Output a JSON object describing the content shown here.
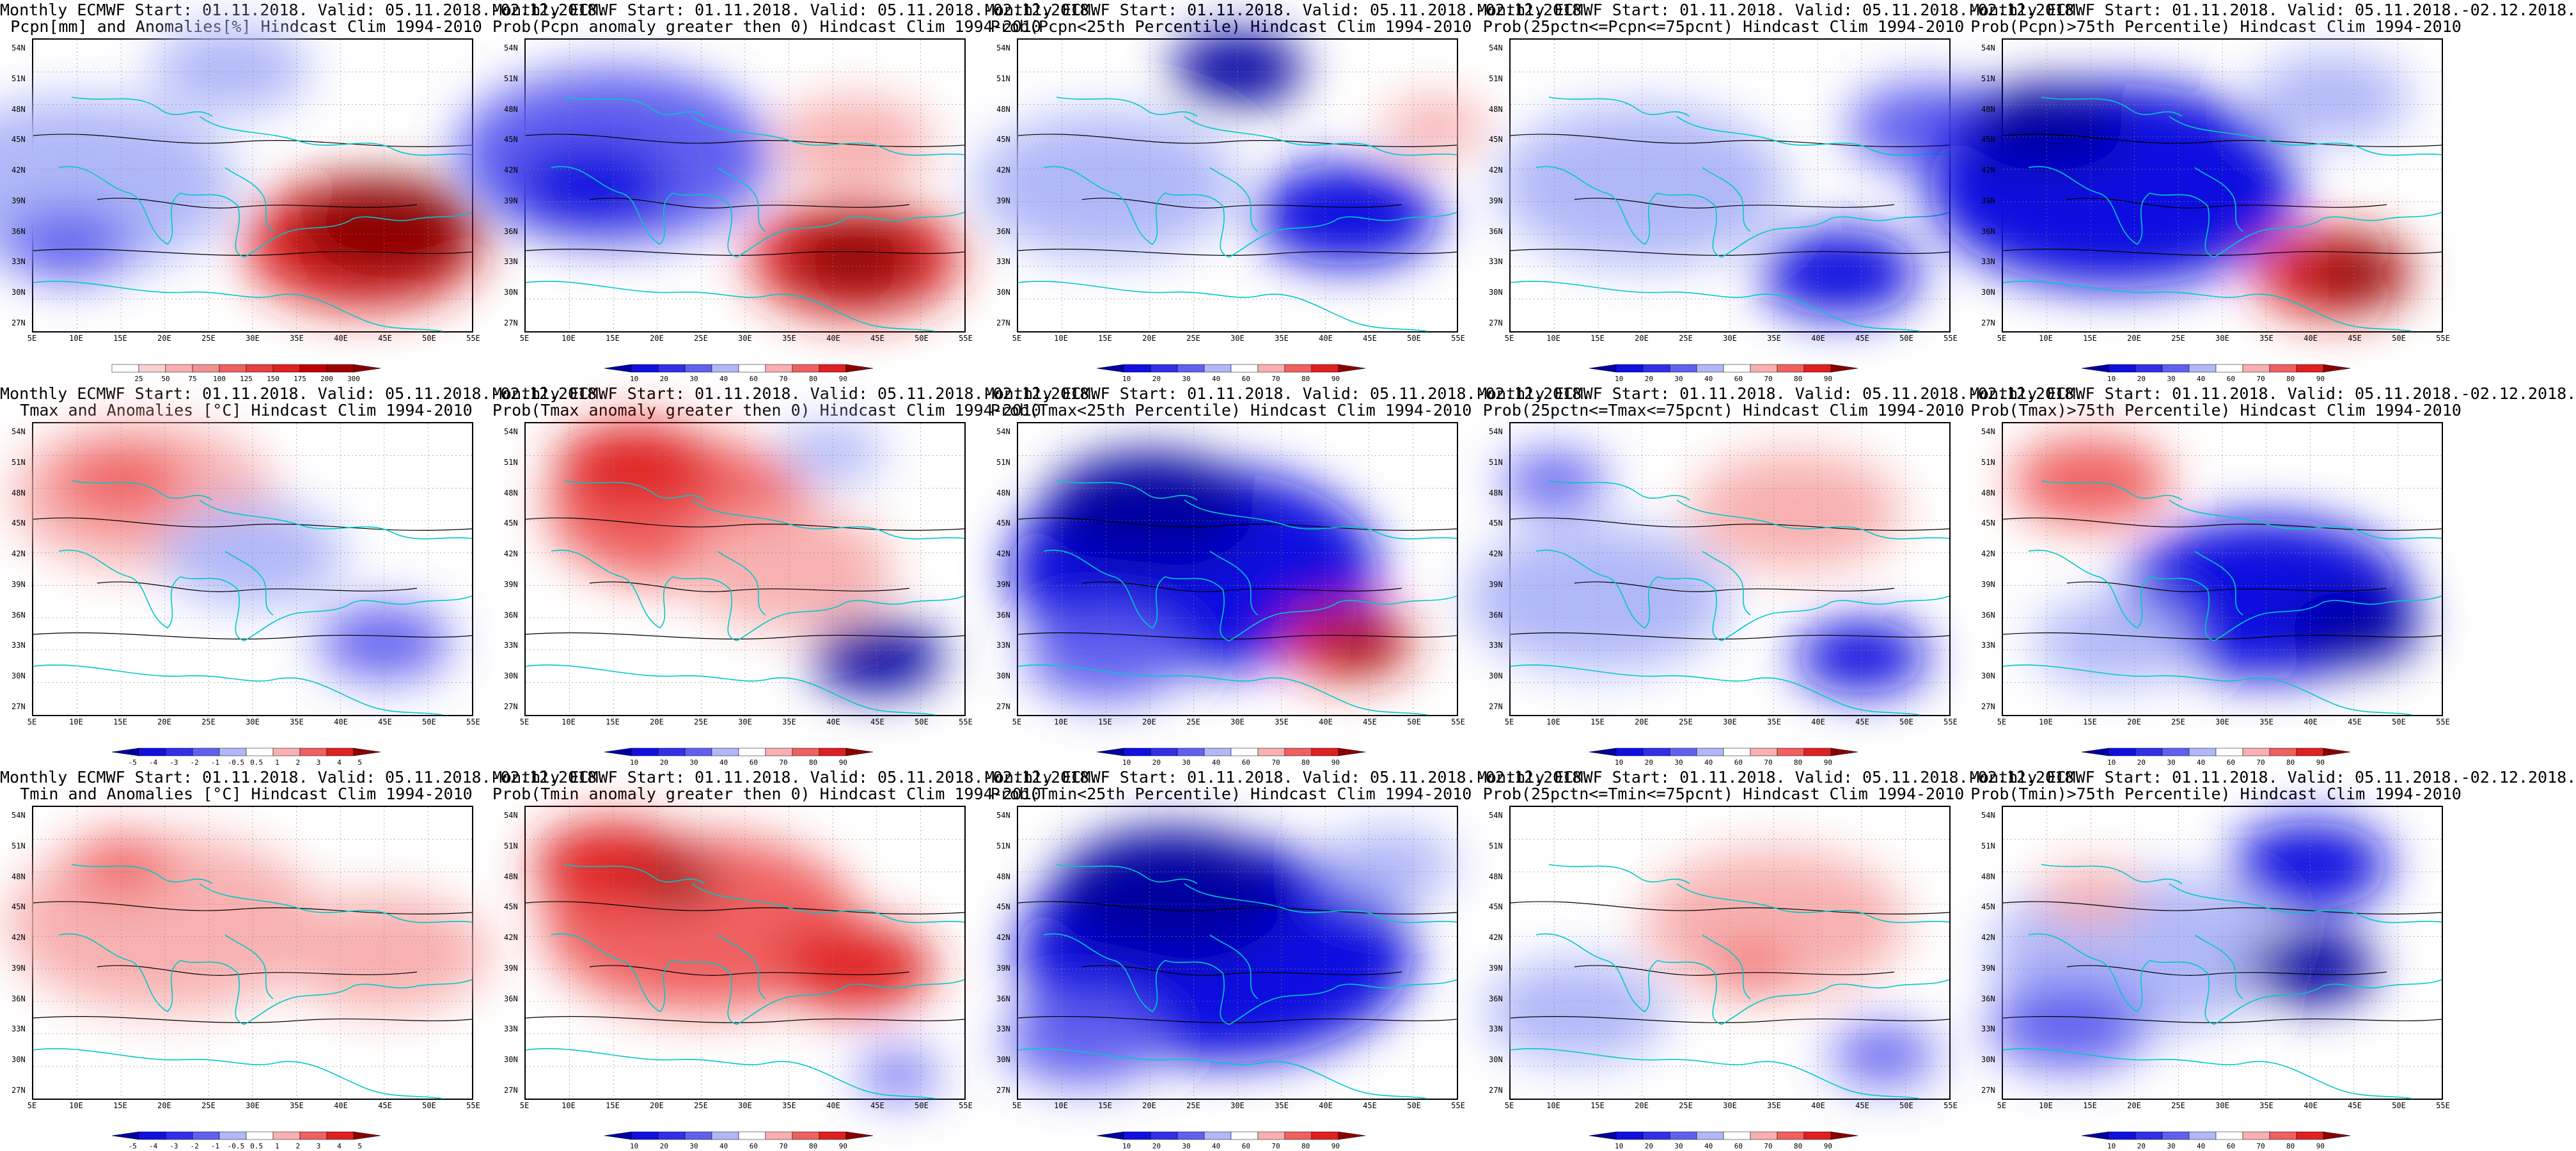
{
  "colors": {
    "red_dark": "#8b0000",
    "red": "#e02020",
    "red_mid": "#f06060",
    "red_light": "#f8b0b0",
    "white": "#ffffff",
    "blue_light": "#b0b8f8",
    "blue_mid": "#6060f0",
    "blue": "#1010e0",
    "blue_dark": "#0000a0",
    "coast": "#00c8c8",
    "contour": "#000000"
  },
  "axes": {
    "lat_labels": [
      "54N",
      "51N",
      "48N",
      "45N",
      "42N",
      "39N",
      "36N",
      "33N",
      "30N",
      "27N"
    ],
    "lon_labels": [
      "5E",
      "10E",
      "15E",
      "20E",
      "25E",
      "30E",
      "35E",
      "40E",
      "45E",
      "50E",
      "55E"
    ]
  },
  "colorbars": {
    "pcpn": [
      "25",
      "50",
      "75",
      "100",
      "125",
      "150",
      "175",
      "200",
      "300"
    ],
    "anom": [
      "-5",
      "-4",
      "-3",
      "-2",
      "-1",
      "-0.5",
      "0.5",
      "1",
      "2",
      "3",
      "4",
      "5"
    ],
    "prob": [
      "10",
      "20",
      "30",
      "40",
      "60",
      "70",
      "80",
      "90"
    ]
  },
  "panels": [
    {
      "id": "pcpn-anomalies",
      "title1": "Monthly ECMWF Start: 01.11.2018. Valid: 05.11.2018.-02.12.2018.",
      "title2": "Pcpn[mm] and Anomalies[%] Hindcast Clim 1994-2010",
      "cb": "pcpn",
      "row": 0,
      "col": 0,
      "fields": [
        [
          "blue_light",
          0.5,
          0.1,
          0.6
        ],
        [
          "blue_mid",
          0.7,
          0.08,
          0.25
        ],
        [
          "red",
          0.7,
          0.75,
          0.45
        ],
        [
          "red_dark",
          0.65,
          0.8,
          0.35
        ],
        [
          "blue_light",
          0.1,
          0.45,
          0.3
        ]
      ]
    },
    {
      "id": "pcpn-prob-gt0",
      "title1": "Monthly ECMWF Start: 01.11.2018. Valid: 05.11.2018.-02.12.2018.",
      "title2": "Prob(Pcpn anomaly greater then 0) Hindcast Clim 1994-2010",
      "cb": "prob",
      "row": 0,
      "col": 1,
      "fields": [
        [
          "blue_mid",
          0.4,
          0.2,
          0.6
        ],
        [
          "blue",
          0.5,
          0.15,
          0.3
        ],
        [
          "red",
          0.75,
          0.75,
          0.4
        ],
        [
          "red_dark",
          0.75,
          0.75,
          0.25
        ],
        [
          "red_light",
          0.35,
          0.75,
          0.3
        ]
      ]
    },
    {
      "id": "pcpn-prob-lt25",
      "title1": "Monthly ECMWF Start: 01.11.2018. Valid: 05.11.2018.-02.12.2018.",
      "title2": "Prob(Pcpn<25th Percentile) Hindcast Clim 1994-2010",
      "cb": "prob",
      "row": 0,
      "col": 2,
      "fields": [
        [
          "blue_light",
          0.5,
          0.2,
          0.5
        ],
        [
          "blue",
          0.6,
          0.75,
          0.35
        ],
        [
          "blue_dark",
          0.1,
          0.5,
          0.25
        ],
        [
          "red_light",
          0.3,
          0.95,
          0.2
        ]
      ]
    },
    {
      "id": "pcpn-prob-25-75",
      "title1": "Monthly ECMWF Start: 01.11.2018. Valid: 05.11.2018.-02.12.2018.",
      "title2": "Prob(25pctn<=Pcpn<=75pcnt) Hindcast Clim 1994-2010",
      "cb": "prob",
      "row": 0,
      "col": 3,
      "fields": [
        [
          "blue_light",
          0.5,
          0.3,
          0.55
        ],
        [
          "blue",
          0.8,
          0.75,
          0.3
        ],
        [
          "blue_mid",
          0.3,
          0.95,
          0.3
        ]
      ]
    },
    {
      "id": "pcpn-prob-gt75",
      "title1": "Monthly ECMWF Start: 01.11.2018. Valid: 05.11.2018.-02.12.2018.",
      "title2": "Prob(Pcpn)>75th Percentile) Hindcast Clim 1994-2010",
      "cb": "prob",
      "row": 0,
      "col": 4,
      "fields": [
        [
          "blue",
          0.5,
          0.25,
          0.7
        ],
        [
          "blue_dark",
          0.3,
          0.1,
          0.3
        ],
        [
          "red",
          0.8,
          0.75,
          0.3
        ],
        [
          "red_dark",
          0.8,
          0.8,
          0.2
        ],
        [
          "blue_light",
          0.2,
          0.75,
          0.3
        ]
      ]
    },
    {
      "id": "tmax-anomalies",
      "title1": "Monthly ECMWF Start: 01.11.2018. Valid: 05.11.2018.-02.12.2018.",
      "title2": "Tmax and Anomalies [°C] Hindcast Clim 1994-2010",
      "cb": "anom",
      "row": 1,
      "col": 0,
      "fields": [
        [
          "red_light",
          0.25,
          0.25,
          0.5
        ],
        [
          "red_mid",
          0.2,
          0.2,
          0.25
        ],
        [
          "blue_light",
          0.45,
          0.5,
          0.35
        ],
        [
          "blue_mid",
          0.75,
          0.8,
          0.25
        ]
      ]
    },
    {
      "id": "tmax-prob-gt0",
      "title1": "Monthly ECMWF Start: 01.11.2018. Valid: 05.11.2018.-02.12.2018.",
      "title2": "Prob(Tmax anomaly greater then 0) Hindcast Clim 1994-2010",
      "cb": "prob",
      "row": 1,
      "col": 1,
      "fields": [
        [
          "red_mid",
          0.3,
          0.35,
          0.5
        ],
        [
          "red",
          0.15,
          0.25,
          0.3
        ],
        [
          "red_light",
          0.5,
          0.6,
          0.4
        ],
        [
          "blue_dark",
          0.8,
          0.8,
          0.25
        ],
        [
          "blue_light",
          0.1,
          0.7,
          0.2
        ]
      ]
    },
    {
      "id": "tmax-prob-lt25",
      "title1": "Monthly ECMWF Start: 01.11.2018. Valid: 05.11.2018.-02.12.2018.",
      "title2": "Prob(Tmax<25th Percentile) Hindcast Clim 1994-2010",
      "cb": "prob",
      "row": 1,
      "col": 2,
      "fields": [
        [
          "blue",
          0.5,
          0.4,
          0.7
        ],
        [
          "blue_dark",
          0.3,
          0.3,
          0.4
        ],
        [
          "blue_mid",
          0.8,
          0.2,
          0.3
        ],
        [
          "red",
          0.75,
          0.75,
          0.25
        ],
        [
          "red_dark",
          0.75,
          0.78,
          0.15
        ]
      ]
    },
    {
      "id": "tmax-prob-25-75",
      "title1": "Monthly ECMWF Start: 01.11.2018. Valid: 05.11.2018.-02.12.2018.",
      "title2": "Prob(25pctn<=Tmax<=75pcnt) Hindcast Clim 1994-2010",
      "cb": "prob",
      "row": 1,
      "col": 3,
      "fields": [
        [
          "blue_light",
          0.6,
          0.2,
          0.5
        ],
        [
          "red_light",
          0.3,
          0.65,
          0.4
        ],
        [
          "blue",
          0.8,
          0.8,
          0.25
        ],
        [
          "blue_mid",
          0.2,
          0.1,
          0.2
        ]
      ]
    },
    {
      "id": "tmax-prob-gt75",
      "title1": "Monthly ECMWF Start: 01.11.2018. Valid: 05.11.2018.-02.12.2018.",
      "title2": "Prob(Tmax)>75th Percentile) Hindcast Clim 1994-2010",
      "cb": "prob",
      "row": 1,
      "col": 4,
      "fields": [
        [
          "red_mid",
          0.2,
          0.2,
          0.3
        ],
        [
          "blue",
          0.6,
          0.6,
          0.55
        ],
        [
          "blue_dark",
          0.7,
          0.8,
          0.25
        ],
        [
          "blue_light",
          0.75,
          0.25,
          0.3
        ]
      ]
    },
    {
      "id": "tmin-anomalies",
      "title1": "Monthly ECMWF Start: 01.11.2018. Valid: 05.11.2018.-02.12.2018.",
      "title2": "Tmin and Anomalies [°C] Hindcast Clim 1994-2010",
      "cb": "anom",
      "row": 2,
      "col": 0,
      "fields": [
        [
          "red_light",
          0.4,
          0.3,
          0.6
        ],
        [
          "red_mid",
          0.2,
          0.2,
          0.2
        ],
        [
          "red_light",
          0.5,
          0.8,
          0.4
        ]
      ]
    },
    {
      "id": "tmin-prob-gt0",
      "title1": "Monthly ECMWF Start: 01.11.2018. Valid: 05.11.2018.-02.12.2018.",
      "title2": "Prob(Tmin anomaly greater then 0) Hindcast Clim 1994-2010",
      "cb": "prob",
      "row": 2,
      "col": 1,
      "fields": [
        [
          "red_mid",
          0.4,
          0.4,
          0.6
        ],
        [
          "red",
          0.2,
          0.2,
          0.3
        ],
        [
          "red_dark",
          0.25,
          0.35,
          0.15
        ],
        [
          "red",
          0.55,
          0.75,
          0.3
        ],
        [
          "blue_mid",
          0.92,
          0.85,
          0.15
        ]
      ]
    },
    {
      "id": "tmin-prob-lt25",
      "title1": "Monthly ECMWF Start: 01.11.2018. Valid: 05.11.2018.-02.12.2018.",
      "title2": "Prob(Tmin<25th Percentile) Hindcast Clim 1994-2010",
      "cb": "prob",
      "row": 2,
      "col": 2,
      "fields": [
        [
          "blue",
          0.5,
          0.45,
          0.75
        ],
        [
          "blue_dark",
          0.3,
          0.35,
          0.45
        ],
        [
          "blue_light",
          0.2,
          0.85,
          0.25
        ],
        [
          "blue_mid",
          0.8,
          0.15,
          0.3
        ]
      ]
    },
    {
      "id": "tmin-prob-25-75",
      "title1": "Monthly ECMWF Start: 01.11.2018. Valid: 05.11.2018.-02.12.2018.",
      "title2": "Prob(25pctn<=Tmin<=75pcnt) Hindcast Clim 1994-2010",
      "cb": "prob",
      "row": 2,
      "col": 3,
      "fields": [
        [
          "red_light",
          0.4,
          0.6,
          0.5
        ],
        [
          "blue_light",
          0.7,
          0.15,
          0.35
        ],
        [
          "red_mid",
          0.55,
          0.55,
          0.15
        ],
        [
          "blue_mid",
          0.85,
          0.85,
          0.2
        ]
      ]
    },
    {
      "id": "tmin-prob-gt75",
      "title1": "Monthly ECMWF Start: 01.11.2018. Valid: 05.11.2018.-02.12.2018.",
      "title2": "Prob(Tmin)>75th Percentile) Hindcast Clim 1994-2010",
      "cb": "prob",
      "row": 2,
      "col": 4,
      "fields": [
        [
          "blue_light",
          0.5,
          0.3,
          0.55
        ],
        [
          "blue_mid",
          0.75,
          0.15,
          0.3
        ],
        [
          "blue",
          0.2,
          0.7,
          0.3
        ],
        [
          "blue_dark",
          0.55,
          0.7,
          0.25
        ],
        [
          "red_light",
          0.3,
          0.2,
          0.2
        ]
      ]
    }
  ]
}
